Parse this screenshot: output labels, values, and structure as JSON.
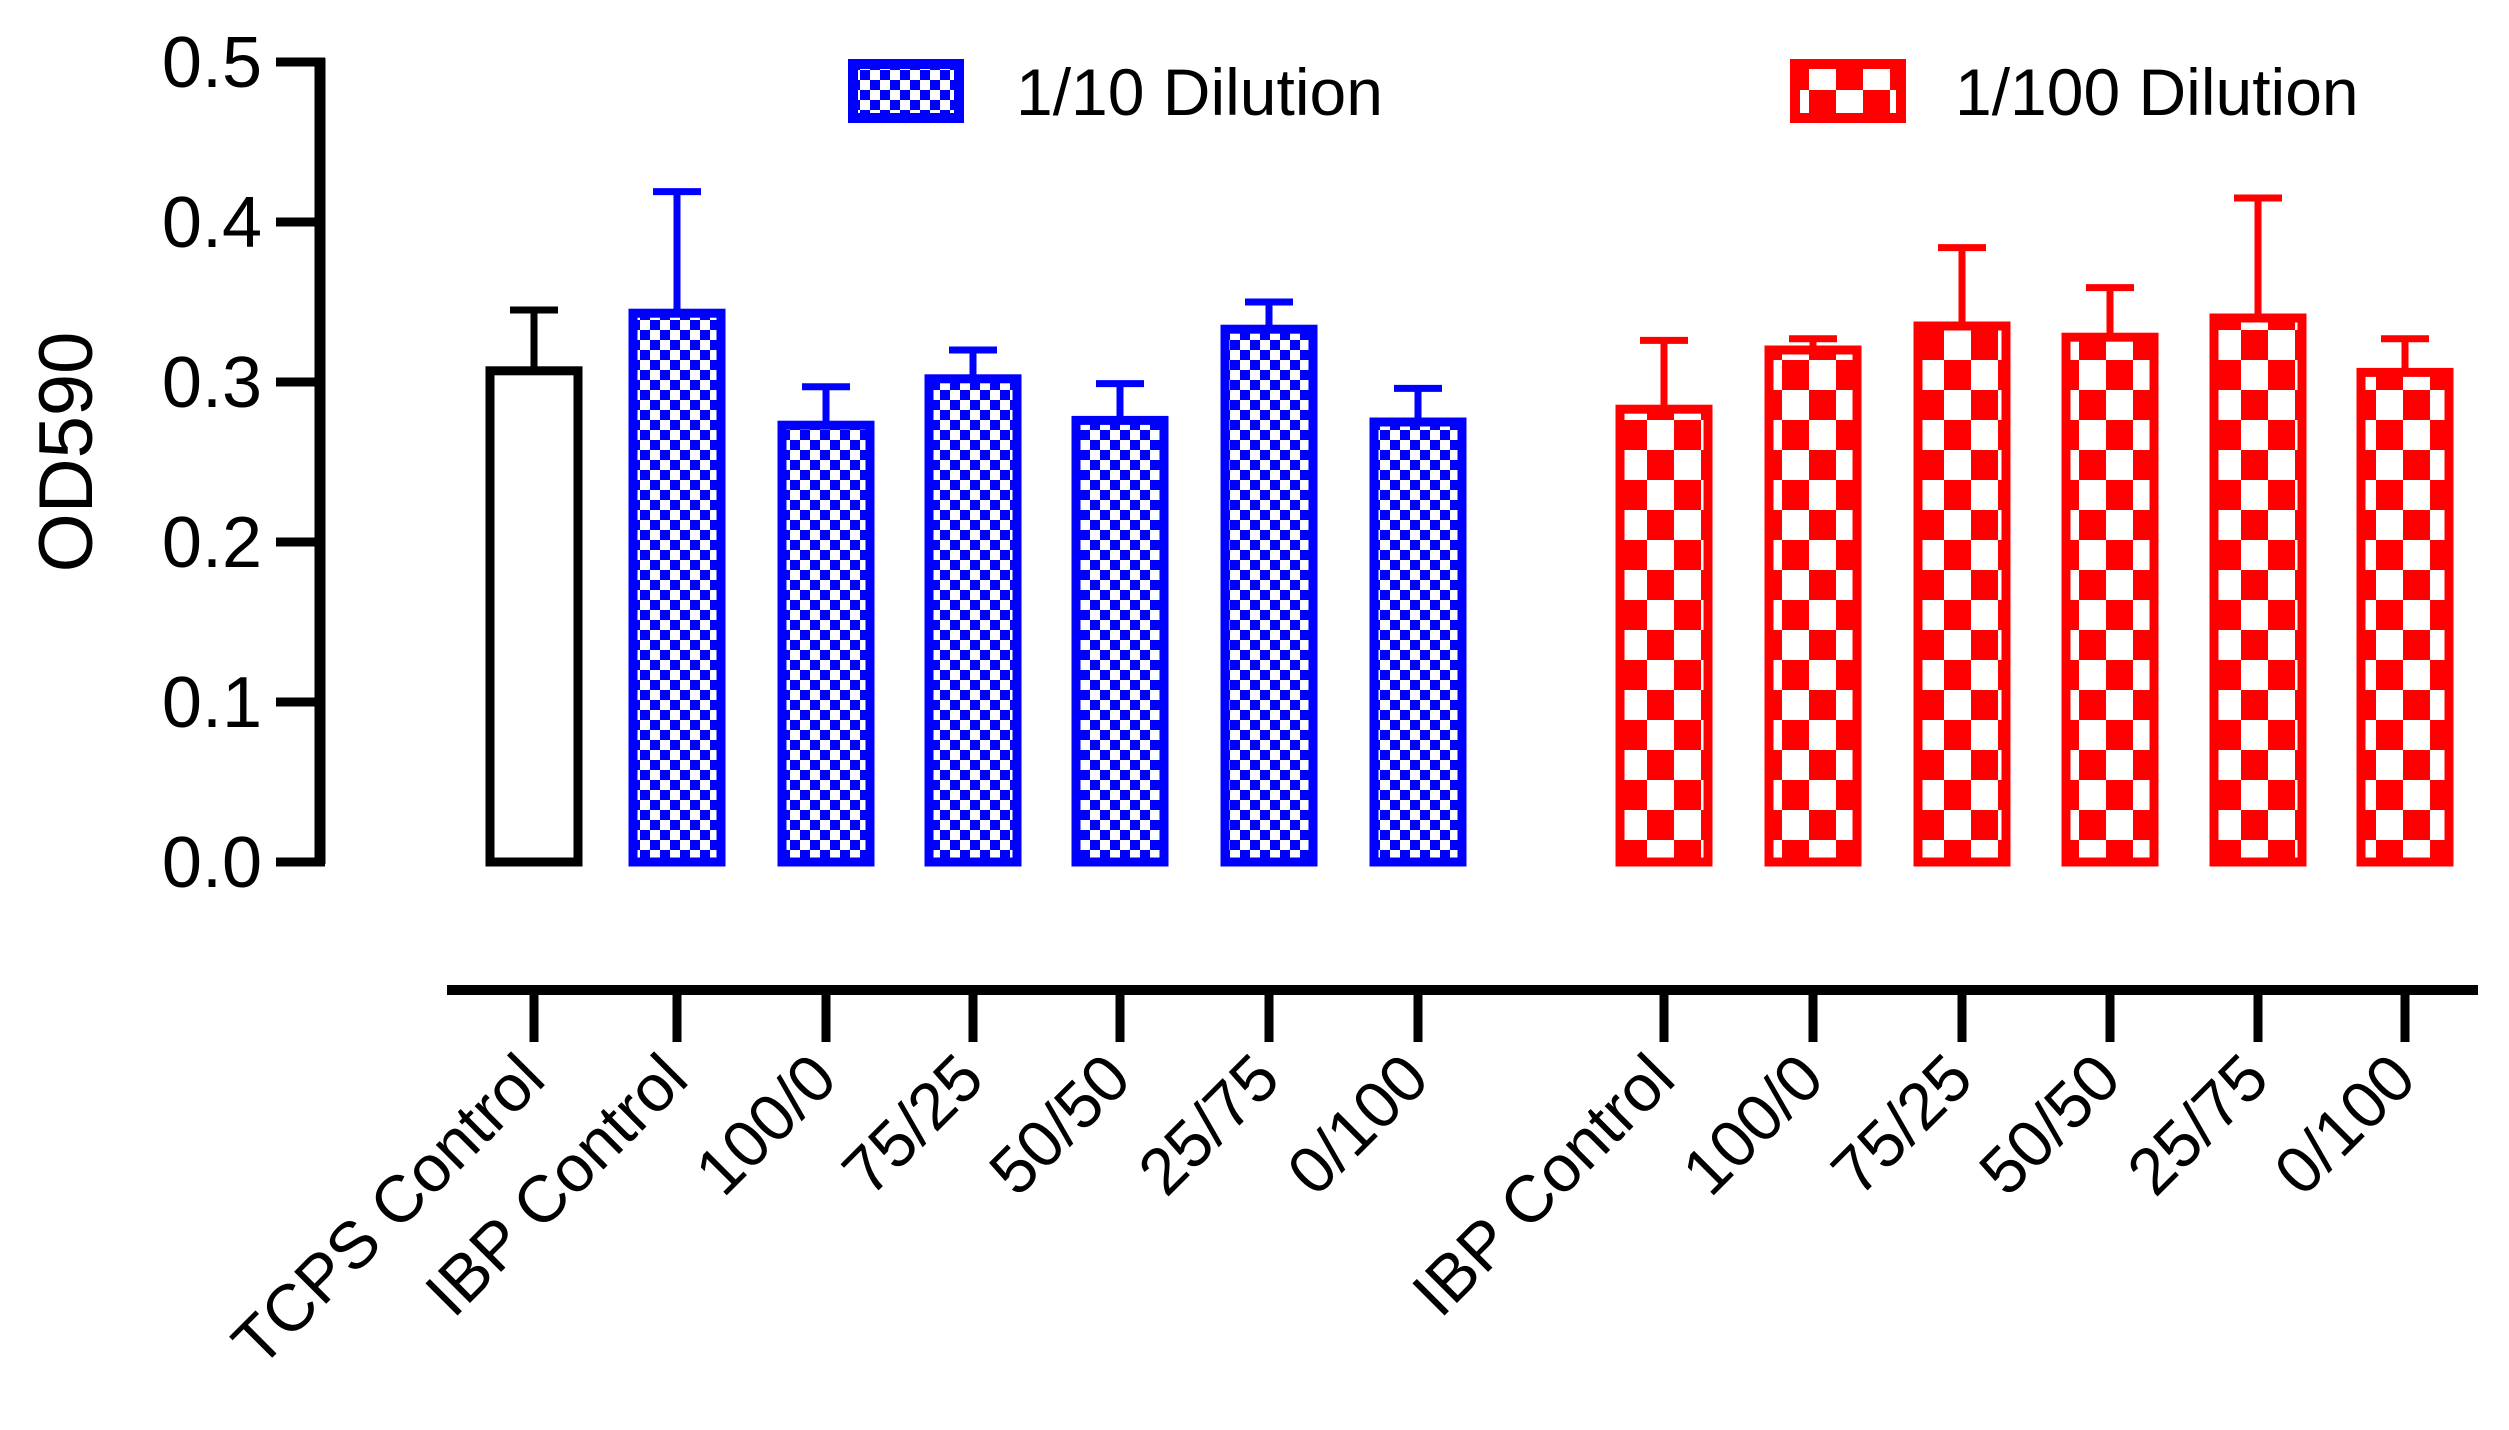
{
  "chart_data": {
    "type": "bar",
    "ylabel": "OD590",
    "ylim": [
      0,
      0.5
    ],
    "yticks": [
      "0.0",
      "0.1",
      "0.2",
      "0.3",
      "0.4",
      "0.5"
    ],
    "legend_position": "top",
    "legend": [
      {
        "name": "1/10 Dilution",
        "color": "#0000ff",
        "pattern": "fine-checkerboard"
      },
      {
        "name": "1/100 Dilution",
        "color": "#ff0000",
        "pattern": "coarse-checkerboard"
      }
    ],
    "categories": [
      "TCPS Control",
      "IBP Control",
      "100/0",
      "75/25",
      "50/50",
      "25/75",
      "0/100",
      "IBP Control",
      "100/0",
      "75/25",
      "50/50",
      "25/75",
      "0/100"
    ],
    "series": [
      {
        "color": "#000000",
        "pattern": "none",
        "values": [
          0.307,
          null,
          null,
          null,
          null,
          null,
          null,
          null,
          null,
          null,
          null,
          null,
          null
        ],
        "errors": [
          0.038,
          null,
          null,
          null,
          null,
          null,
          null,
          null,
          null,
          null,
          null,
          null,
          null
        ]
      },
      {
        "name": "1/10 Dilution",
        "color": "#0000ff",
        "pattern": "fine-checkerboard",
        "values": [
          null,
          0.343,
          0.273,
          0.302,
          0.276,
          0.333,
          0.275,
          null,
          null,
          null,
          null,
          null,
          null
        ],
        "errors": [
          null,
          0.076,
          0.024,
          0.018,
          0.023,
          0.017,
          0.021,
          null,
          null,
          null,
          null,
          null,
          null
        ]
      },
      {
        "name": "1/100 Dilution",
        "color": "#ff0000",
        "pattern": "coarse-checkerboard",
        "values": [
          null,
          null,
          null,
          null,
          null,
          null,
          null,
          0.283,
          0.32,
          0.335,
          0.328,
          0.34,
          0.306
        ],
        "errors": [
          null,
          null,
          null,
          null,
          null,
          null,
          null,
          0.043,
          0.007,
          0.049,
          0.031,
          0.075,
          0.021
        ]
      }
    ]
  }
}
